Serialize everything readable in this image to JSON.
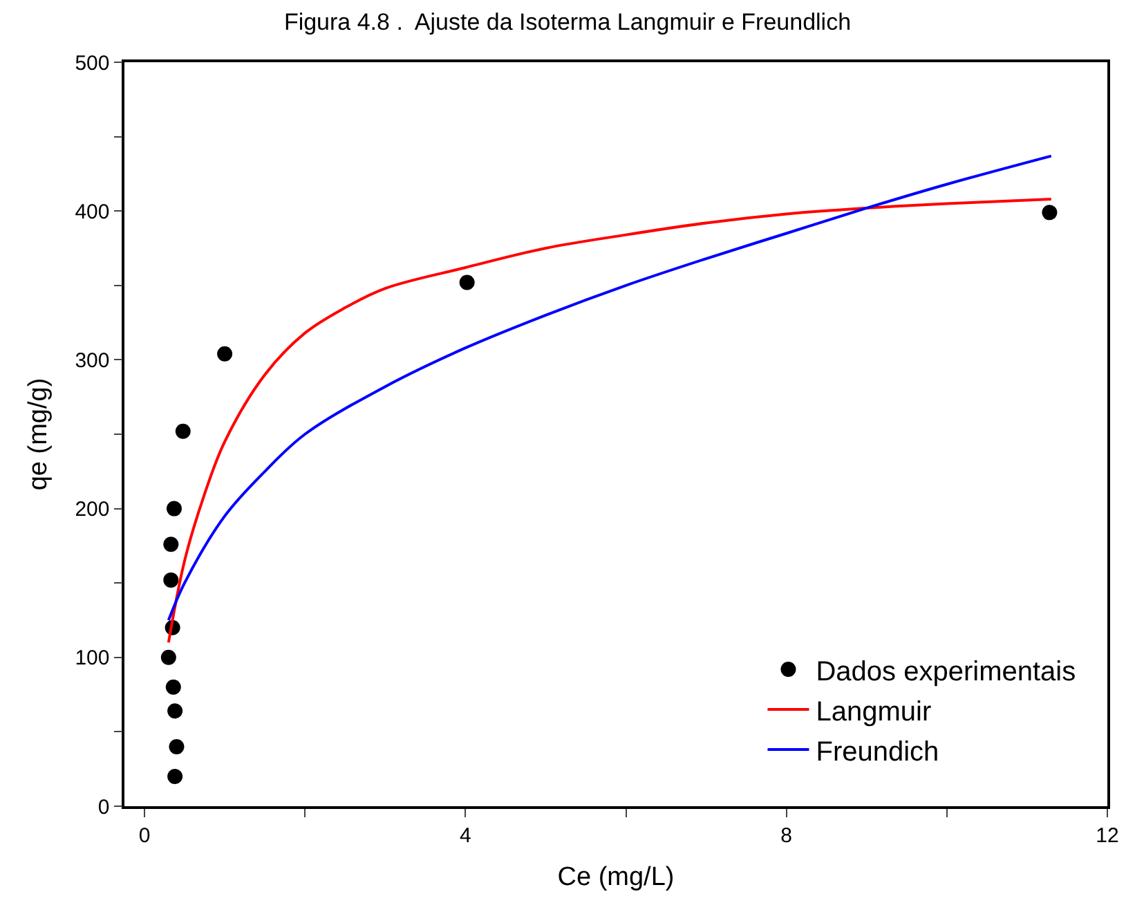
{
  "chart_data": {
    "type": "scatter",
    "title": "Figura 4.8 .  Ajuste da Isoterma Langmuir e Freundlich",
    "xlabel": "Ce (mg/L)",
    "ylabel": "qe (mg/g)",
    "xlim": [
      -0.25,
      12
    ],
    "xticks": [
      0,
      {
        "value": 2,
        "label": null
      },
      4,
      {
        "value": 6,
        "label": null
      },
      8,
      {
        "value": 10,
        "label": null
      },
      12
    ],
    "ylim": [
      0,
      500
    ],
    "yticks": [
      0,
      {
        "value": 50,
        "label": null
      },
      100,
      {
        "value": 150,
        "label": null
      },
      200,
      {
        "value": 250,
        "label": null
      },
      300,
      {
        "value": 350,
        "label": null
      },
      400,
      {
        "value": 450,
        "label": null
      },
      500
    ],
    "legend": "bottom right",
    "series": [
      {
        "name": "Dados experimentais",
        "marker": "circle",
        "color": "#000000",
        "x": [
          0.38,
          0.4,
          0.38,
          0.36,
          0.3,
          0.35,
          0.33,
          0.33,
          0.37,
          0.48,
          1.0,
          4.02,
          11.28
        ],
        "values": [
          20,
          40,
          64,
          80,
          100,
          120,
          152,
          176,
          200,
          252,
          304,
          352,
          399
        ]
      },
      {
        "name": "Langmuir",
        "type": "line",
        "marker": "none",
        "color": "#ff0000",
        "x": [
          0.3,
          0.5,
          0.75,
          1,
          1.5,
          2,
          2.5,
          3,
          4,
          5,
          6,
          7,
          8,
          9,
          10,
          11.3
        ],
        "values": [
          110,
          165,
          210,
          245,
          290,
          318,
          335,
          348,
          362,
          375,
          384,
          392,
          398,
          402,
          405,
          408
        ]
      },
      {
        "name": "Freundich",
        "type": "line",
        "marker": "none",
        "color": "#0000ff",
        "x": [
          0.3,
          0.5,
          1,
          1.5,
          2,
          3,
          4,
          5,
          6,
          7,
          8,
          9,
          10,
          11.3
        ],
        "values": [
          125,
          150,
          195,
          225,
          250,
          282,
          308,
          330,
          350,
          368,
          385,
          402,
          418,
          437
        ]
      }
    ]
  }
}
